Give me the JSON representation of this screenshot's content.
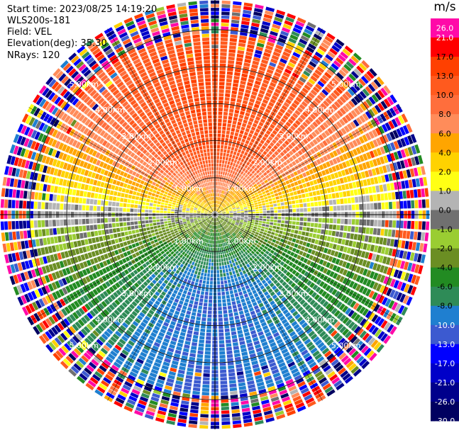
{
  "header": {
    "start_time": "Start time: 2023/08/25 14:19:20",
    "instrument": "WLS200s-181",
    "field": "Field: VEL",
    "elevation": "Elevation(deg): 35.30",
    "nrays": "NRays: 120"
  },
  "chart_data": {
    "type": "heatmap",
    "projection": "polar-ppi",
    "field": "VEL",
    "units": "m/s",
    "n_rays": 120,
    "range_rings_km": [
      1.0,
      2.0,
      3.0,
      4.0,
      5.0
    ],
    "ring_labels": [
      "1.00km",
      "2.00km",
      "3.00km",
      "4.00km",
      "5.00km"
    ],
    "max_range_km": 5.8,
    "colorbar": {
      "ticks": [
        "26.0",
        "21.0",
        "17.0",
        "13.0",
        "10.0",
        "8.0",
        "6.0",
        "4.0",
        "2.0",
        "1.0",
        "0.0",
        "-1.0",
        "-2.0",
        "-4.0",
        "-6.0",
        "-8.0",
        "-10.0",
        "-13.0",
        "-17.0",
        "-21.0",
        "-26.0",
        "-30.0"
      ],
      "colors": [
        "#ff0aa8",
        "#ff0000",
        "#ff4000",
        "#ff5a1e",
        "#ff6e3c",
        "#ff8c5a",
        "#ffa500",
        "#ffd200",
        "#ffff14",
        "#b4b4b4",
        "#707070",
        "#9acd32",
        "#6b8e23",
        "#228b22",
        "#2e8b57",
        "#1f7fd0",
        "#3c5ad0",
        "#0000ff",
        "#0000c8",
        "#00008b",
        "#000060"
      ],
      "color_range": [
        -30.0,
        26.0
      ]
    },
    "velocity_pattern": {
      "north_sector_ms": 13.0,
      "south_sector_ms": -10.0,
      "zero_line_azimuth_deg": 90,
      "noise_beyond_km": 4.8
    }
  }
}
